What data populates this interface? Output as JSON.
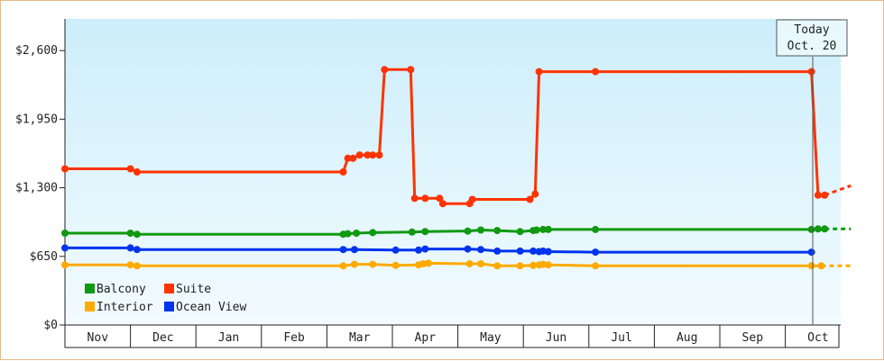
{
  "chart_data": {
    "type": "line",
    "title": "",
    "xlabel": "",
    "ylabel": "",
    "ylim": [
      0,
      2900
    ],
    "yticks": [
      0,
      650,
      1300,
      1950,
      2600
    ],
    "ytick_labels": [
      "$0",
      "$650",
      "$1,300",
      "$1,950",
      "$2,600"
    ],
    "months": [
      "Nov",
      "Dec",
      "Jan",
      "Feb",
      "Mar",
      "Apr",
      "May",
      "Jun",
      "Jul",
      "Aug",
      "Sep",
      "Oct"
    ],
    "x_unit": "months since start of Nov (0 = start of Nov, 11.5 = mid Oct)",
    "today": {
      "line1": "Today",
      "line2": "Oct. 20"
    },
    "grid": false,
    "legend_position": "bottom-left",
    "series": [
      {
        "name": "Suite",
        "color": "#ff3300",
        "points": [
          [
            0.0,
            1480
          ],
          [
            1.0,
            1480
          ],
          [
            1.1,
            1450
          ],
          [
            4.25,
            1450
          ],
          [
            4.32,
            1580
          ],
          [
            4.4,
            1580
          ],
          [
            4.5,
            1610
          ],
          [
            4.62,
            1610
          ],
          [
            4.7,
            1610
          ],
          [
            4.8,
            1610
          ],
          [
            4.88,
            2420
          ],
          [
            5.28,
            2420
          ],
          [
            5.34,
            1200
          ],
          [
            5.5,
            1200
          ],
          [
            5.72,
            1200
          ],
          [
            5.77,
            1150
          ],
          [
            6.18,
            1150
          ],
          [
            6.22,
            1190
          ],
          [
            7.1,
            1190
          ],
          [
            7.18,
            1240
          ],
          [
            7.24,
            2400
          ],
          [
            8.1,
            2400
          ],
          [
            11.4,
            2400
          ],
          [
            11.5,
            1230
          ],
          [
            11.6,
            1230
          ]
        ],
        "projection": [
          [
            11.6,
            1230
          ],
          [
            12.0,
            1320
          ]
        ]
      },
      {
        "name": "Balcony",
        "color": "#119911",
        "points": [
          [
            0.0,
            870
          ],
          [
            1.0,
            870
          ],
          [
            1.1,
            860
          ],
          [
            4.25,
            860
          ],
          [
            4.32,
            865
          ],
          [
            4.45,
            870
          ],
          [
            4.7,
            875
          ],
          [
            5.3,
            880
          ],
          [
            5.5,
            885
          ],
          [
            6.15,
            890
          ],
          [
            6.35,
            900
          ],
          [
            6.6,
            895
          ],
          [
            6.95,
            885
          ],
          [
            7.15,
            895
          ],
          [
            7.2,
            900
          ],
          [
            7.3,
            905
          ],
          [
            7.38,
            905
          ],
          [
            8.1,
            905
          ],
          [
            11.4,
            905
          ],
          [
            11.5,
            910
          ],
          [
            11.6,
            910
          ]
        ],
        "projection": [
          [
            11.6,
            910
          ],
          [
            12.0,
            910
          ]
        ]
      },
      {
        "name": "Interior",
        "color": "#ffaa00",
        "points": [
          [
            0.0,
            570
          ],
          [
            1.0,
            570
          ],
          [
            1.1,
            560
          ],
          [
            4.25,
            560
          ],
          [
            4.42,
            575
          ],
          [
            4.7,
            575
          ],
          [
            5.05,
            565
          ],
          [
            5.4,
            570
          ],
          [
            5.47,
            580
          ],
          [
            5.55,
            585
          ],
          [
            6.18,
            580
          ],
          [
            6.35,
            580
          ],
          [
            6.6,
            560
          ],
          [
            6.95,
            560
          ],
          [
            7.15,
            565
          ],
          [
            7.24,
            570
          ],
          [
            7.3,
            575
          ],
          [
            7.38,
            570
          ],
          [
            8.1,
            560
          ],
          [
            11.4,
            560
          ],
          [
            11.55,
            560
          ]
        ],
        "projection": [
          [
            11.55,
            560
          ],
          [
            12.0,
            560
          ]
        ]
      },
      {
        "name": "Ocean View",
        "color": "#0033ee",
        "points": [
          [
            0.0,
            730
          ],
          [
            1.0,
            730
          ],
          [
            1.1,
            715
          ],
          [
            4.25,
            715
          ],
          [
            4.42,
            715
          ],
          [
            5.05,
            710
          ],
          [
            5.4,
            710
          ],
          [
            5.5,
            720
          ],
          [
            6.15,
            720
          ],
          [
            6.35,
            715
          ],
          [
            6.6,
            700
          ],
          [
            6.95,
            700
          ],
          [
            7.15,
            700
          ],
          [
            7.24,
            695
          ],
          [
            7.3,
            700
          ],
          [
            7.38,
            695
          ],
          [
            8.1,
            690
          ],
          [
            11.4,
            690
          ]
        ],
        "projection": []
      }
    ]
  },
  "legend": [
    {
      "name": "Balcony",
      "color": "#119911"
    },
    {
      "name": "Suite",
      "color": "#ff3300"
    },
    {
      "name": "Interior",
      "color": "#ffaa00"
    },
    {
      "name": "Ocean View",
      "color": "#0033ee"
    }
  ]
}
